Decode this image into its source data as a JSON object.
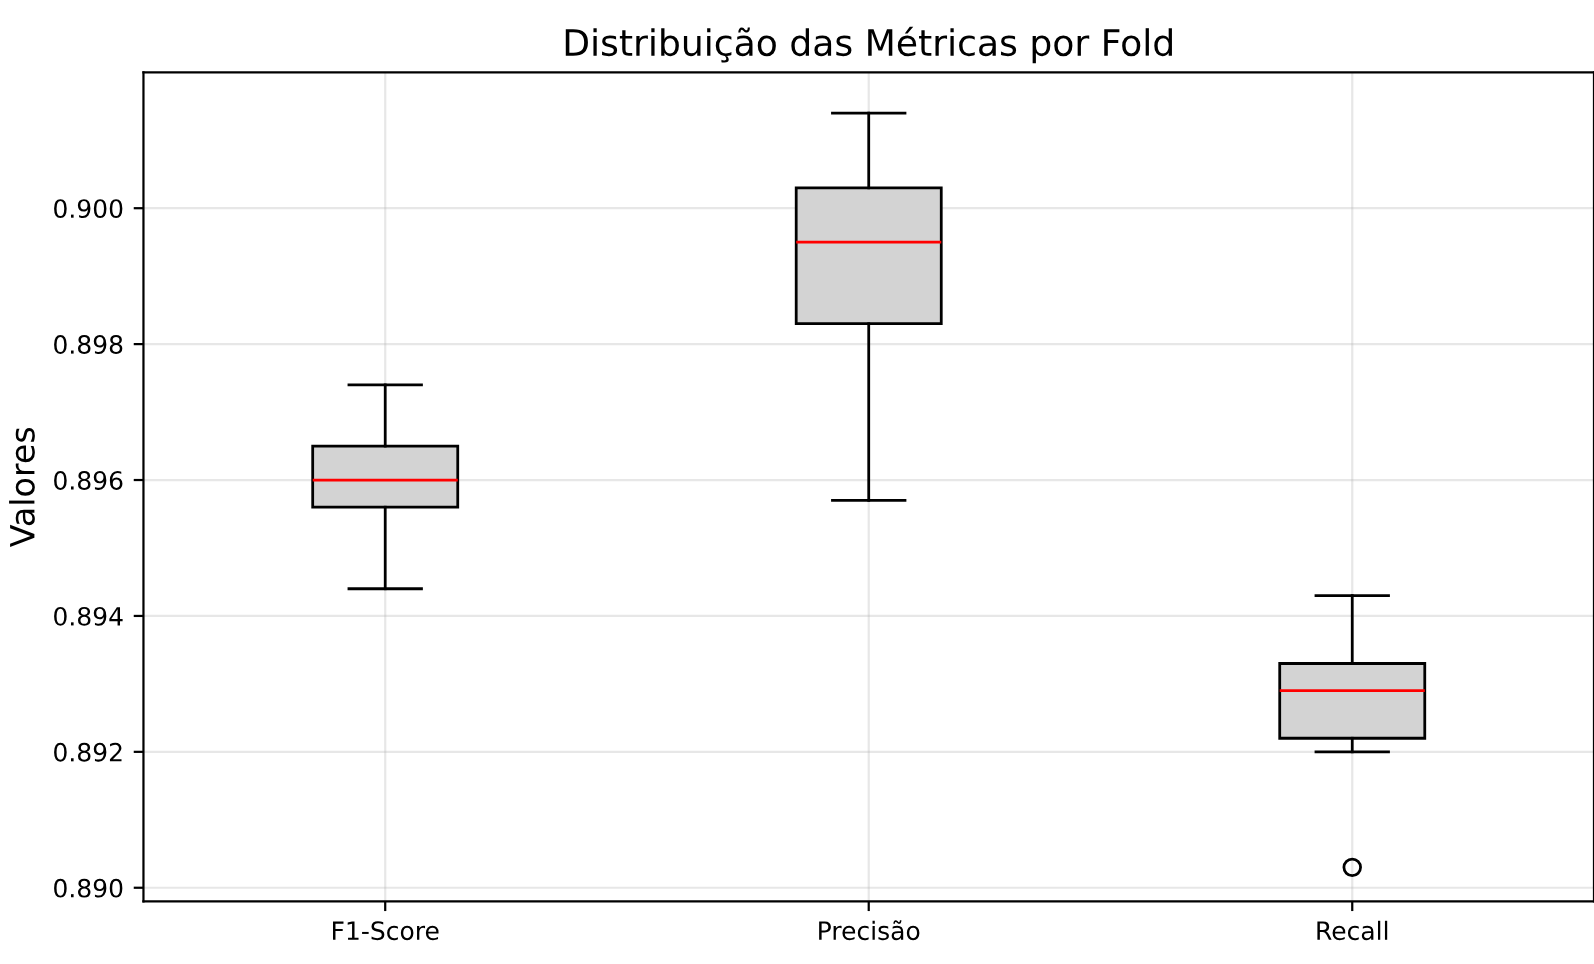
{
  "chart_data": {
    "type": "box",
    "title": "Distribuição das Métricas por Fold",
    "ylabel": "Valores",
    "categories": [
      "F1-Score",
      "Precisão",
      "Recall"
    ],
    "boxes": [
      {
        "low": 0.8944,
        "q1": 0.8956,
        "median": 0.896,
        "q3": 0.8965,
        "high": 0.8974
      },
      {
        "low": 0.8957,
        "q1": 0.8983,
        "median": 0.8995,
        "q3": 0.9003,
        "high": 0.9014
      },
      {
        "low": 0.892,
        "q1": 0.8922,
        "median": 0.8929,
        "q3": 0.8933,
        "high": 0.8943,
        "outliers": [
          0.8903
        ]
      }
    ],
    "color": "#d3d3d3",
    "ylim": [
      0.8898,
      0.902
    ],
    "yticks": [
      {
        "value": 0.89,
        "label": "0.890"
      },
      {
        "value": 0.892,
        "label": "0.892"
      },
      {
        "value": 0.894,
        "label": "0.894"
      },
      {
        "value": 0.896,
        "label": "0.896"
      },
      {
        "value": 0.898,
        "label": "0.898"
      },
      {
        "value": 0.9,
        "label": "0.900"
      }
    ],
    "grid": true
  }
}
